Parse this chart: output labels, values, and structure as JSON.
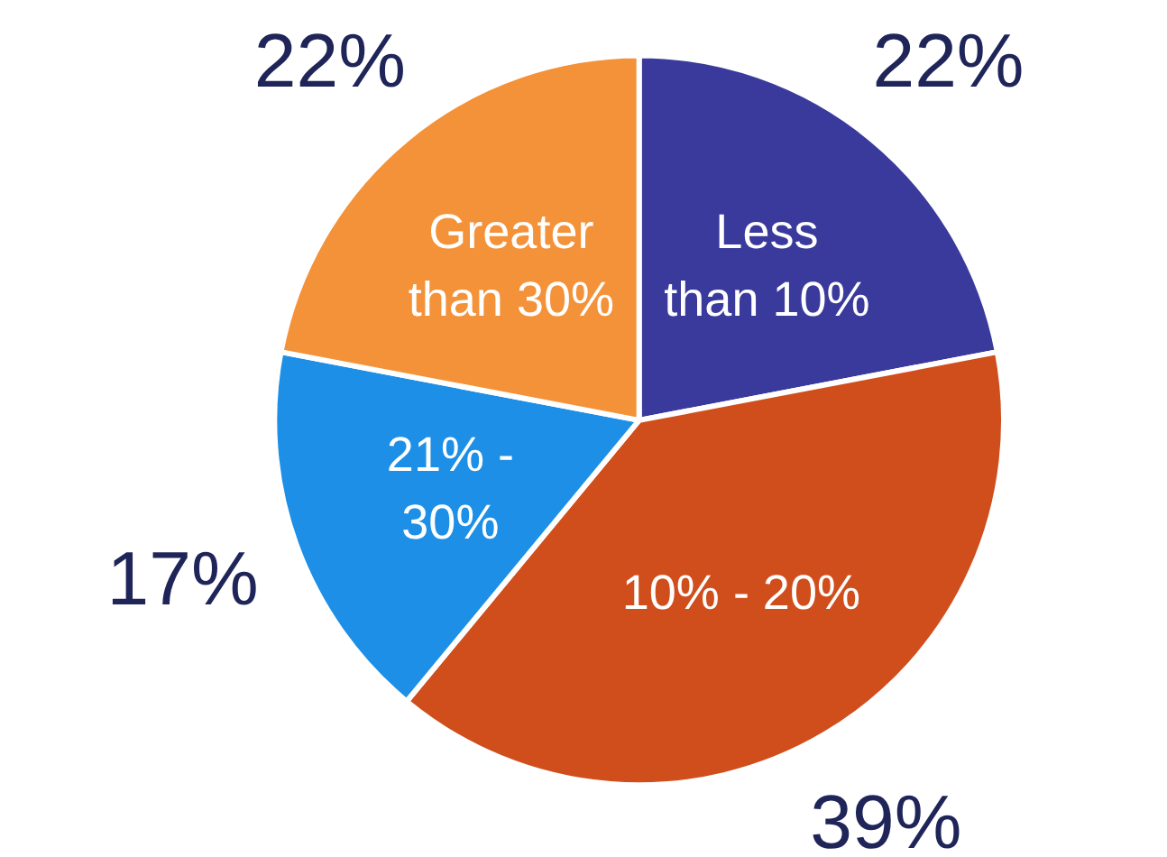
{
  "chart_data": {
    "type": "pie",
    "categories": [
      "Less than 10%",
      "10% - 20%",
      "21% - 30%",
      "Greater than 30%"
    ],
    "values": [
      22,
      39,
      17,
      22
    ],
    "colors": [
      "#3a3a9c",
      "#d04e1c",
      "#1d8fe6",
      "#f4923a"
    ],
    "value_labels": [
      "22%",
      "39%",
      "17%",
      "22%"
    ]
  }
}
